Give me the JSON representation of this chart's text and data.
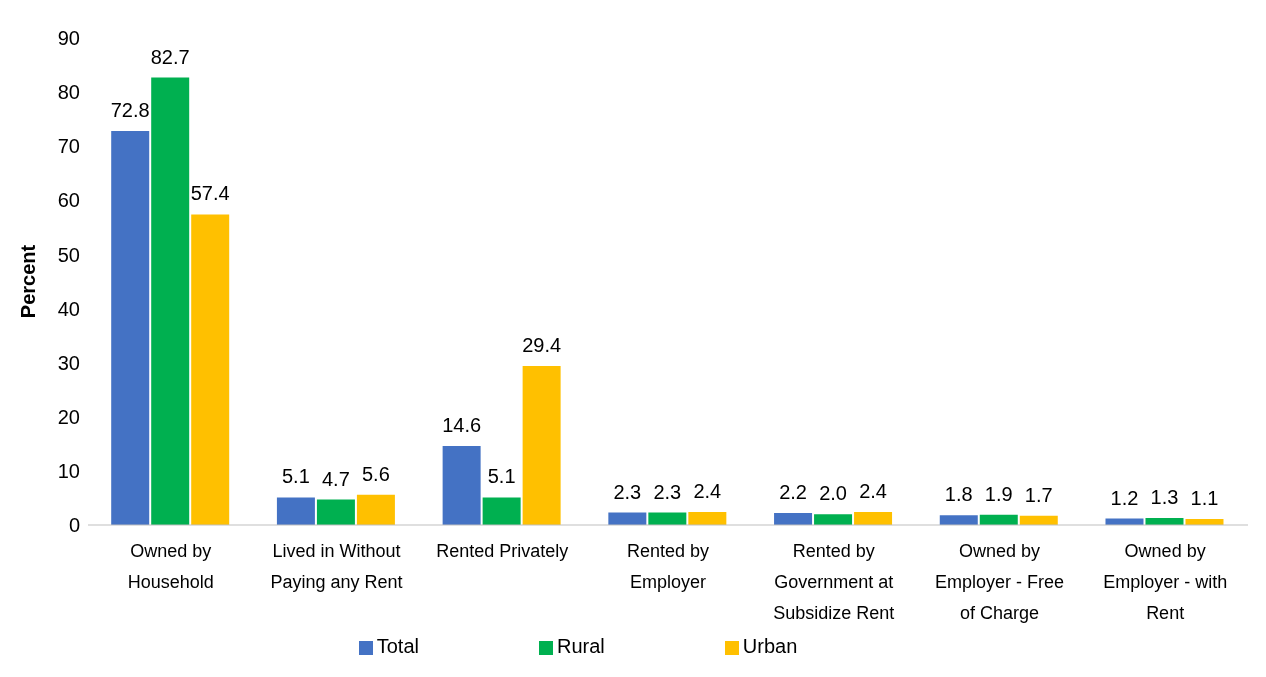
{
  "chart_data": {
    "type": "bar",
    "ylabel": "Percent",
    "categories": [
      "Owned by Household",
      "Lived in Without Paying any Rent",
      "Rented Privately",
      "Rented by Employer",
      "Rented by Government at Subsidize Rent",
      "Owned by Employer - Free of Charge",
      "Owned by Employer - with Rent"
    ],
    "series": [
      {
        "name": "Total",
        "color": "#4472c4",
        "values": [
          72.8,
          5.1,
          14.6,
          2.3,
          2.2,
          1.8,
          1.2
        ],
        "value_labels": [
          "72.8",
          "5.1",
          "14.6",
          "2.3",
          "2.2",
          "1.8",
          "1.2"
        ]
      },
      {
        "name": "Rural",
        "color": "#00b050",
        "values": [
          82.7,
          4.7,
          5.1,
          2.3,
          2.0,
          1.9,
          1.3
        ],
        "value_labels": [
          "82.7",
          "4.7",
          "5.1",
          "2.3",
          "2.0",
          "1.9",
          "1.3"
        ]
      },
      {
        "name": "Urban",
        "color": "#ffc000",
        "values": [
          57.4,
          5.6,
          29.4,
          2.4,
          2.4,
          1.7,
          1.1
        ],
        "value_labels": [
          "57.4",
          "5.6",
          "29.4",
          "2.4",
          "2.4",
          "1.7",
          "1.1"
        ]
      }
    ],
    "ylim": [
      0,
      90
    ],
    "yticks": [
      0,
      10,
      20,
      30,
      40,
      50,
      60,
      70,
      80,
      90
    ],
    "grid": false,
    "legend": "bottom"
  }
}
